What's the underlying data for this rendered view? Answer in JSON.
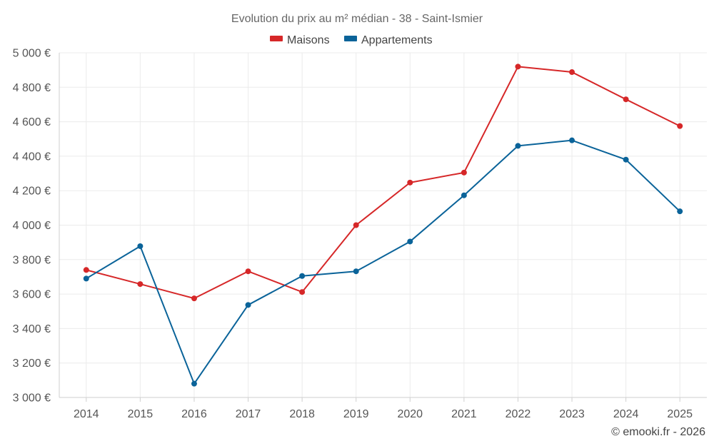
{
  "chart_data": {
    "type": "line",
    "title": "Evolution du prix au m² médian - 38 - Saint-Ismier",
    "categories": [
      "2014",
      "2015",
      "2016",
      "2017",
      "2018",
      "2019",
      "2020",
      "2021",
      "2022",
      "2023",
      "2024",
      "2025"
    ],
    "series": [
      {
        "name": "Maisons",
        "color": "#d62728",
        "values": [
          3740,
          3658,
          3575,
          3732,
          3612,
          4000,
          4247,
          4305,
          4920,
          4888,
          4730,
          4575
        ]
      },
      {
        "name": "Appartements",
        "color": "#0a6399",
        "values": [
          3690,
          3878,
          3080,
          3537,
          3705,
          3732,
          3905,
          4173,
          4460,
          4492,
          4380,
          4080
        ]
      }
    ],
    "ylim": [
      3000,
      5000
    ],
    "yticks": [
      3000,
      3200,
      3400,
      3600,
      3800,
      4000,
      4200,
      4400,
      4600,
      4800,
      5000
    ],
    "ytick_labels": [
      "3 000 €",
      "3 200 €",
      "3 400 €",
      "3 600 €",
      "3 800 €",
      "4 000 €",
      "4 200 €",
      "4 400 €",
      "4 600 €",
      "4 800 €",
      "5 000 €"
    ],
    "xlabel": "",
    "ylabel": "",
    "grid": true,
    "legend": "top-center"
  },
  "credit": "© emooki.fr - 2026"
}
